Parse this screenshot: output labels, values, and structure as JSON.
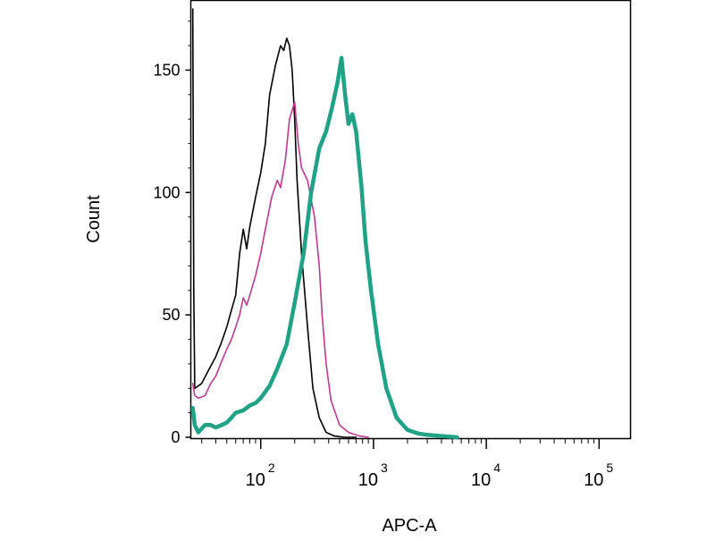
{
  "chart_data": {
    "type": "line",
    "xlabel": "APC-A",
    "ylabel": "Count",
    "x_scale": "log",
    "xlim": [
      24,
      190000
    ],
    "ylim": [
      0,
      175
    ],
    "grid": false,
    "yticks": [
      {
        "value": 0,
        "label": "0"
      },
      {
        "value": 50,
        "label": "50"
      },
      {
        "value": 100,
        "label": "100"
      },
      {
        "value": 150,
        "label": "150"
      }
    ],
    "xticks": [
      {
        "value": 100,
        "base": "10",
        "exp": "2"
      },
      {
        "value": 1000,
        "base": "10",
        "exp": "3"
      },
      {
        "value": 10000,
        "base": "10",
        "exp": "4"
      },
      {
        "value": 100000,
        "base": "10",
        "exp": "5"
      }
    ],
    "series": [
      {
        "color": "#000000",
        "line_weight": "thin",
        "x": [
          25,
          25.5,
          26,
          30,
          35,
          40,
          45,
          50,
          55,
          60,
          65,
          70,
          75,
          80,
          90,
          100,
          110,
          120,
          135,
          150,
          160,
          170,
          180,
          190,
          200,
          210,
          230,
          260,
          290,
          330,
          380,
          450,
          550,
          700
        ],
        "y": [
          175,
          60,
          20,
          22,
          28,
          33,
          39,
          45,
          52,
          58,
          75,
          85,
          77,
          86,
          98,
          108,
          120,
          140,
          152,
          160,
          158,
          163,
          160,
          150,
          130,
          105,
          75,
          45,
          20,
          8,
          2,
          0.5,
          0,
          0
        ]
      },
      {
        "color": "#c0398e",
        "line_weight": "thin",
        "x": [
          25,
          26,
          28,
          32,
          36,
          40,
          45,
          50,
          55,
          60,
          65,
          70,
          75,
          80,
          90,
          100,
          110,
          125,
          140,
          150,
          165,
          180,
          200,
          215,
          230,
          260,
          300,
          330,
          350,
          380,
          420,
          500,
          600,
          750,
          900
        ],
        "y": [
          22,
          17,
          16,
          17,
          22,
          25,
          31,
          36,
          40,
          45,
          50,
          57,
          54,
          58,
          66,
          75,
          85,
          98,
          105,
          102,
          113,
          130,
          137,
          120,
          110,
          105,
          90,
          70,
          50,
          30,
          15,
          5,
          2,
          0.5,
          0
        ]
      },
      {
        "color": "#1fa286",
        "line_weight": "thick",
        "x": [
          25,
          26,
          28,
          32,
          36,
          40,
          45,
          50,
          55,
          60,
          70,
          80,
          90,
          100,
          120,
          140,
          170,
          200,
          240,
          280,
          330,
          380,
          430,
          480,
          520,
          560,
          600,
          650,
          700,
          780,
          850,
          950,
          1100,
          1300,
          1600,
          2000,
          2500,
          3000,
          4000,
          5500
        ],
        "y": [
          12,
          5,
          2,
          5,
          5,
          4,
          5,
          6,
          8,
          10,
          11,
          13,
          14,
          16,
          21,
          28,
          38,
          55,
          75,
          100,
          118,
          125,
          135,
          145,
          155,
          140,
          128,
          132,
          125,
          103,
          80,
          60,
          38,
          20,
          8,
          3,
          1.5,
          1,
          0.5,
          0
        ]
      }
    ]
  }
}
